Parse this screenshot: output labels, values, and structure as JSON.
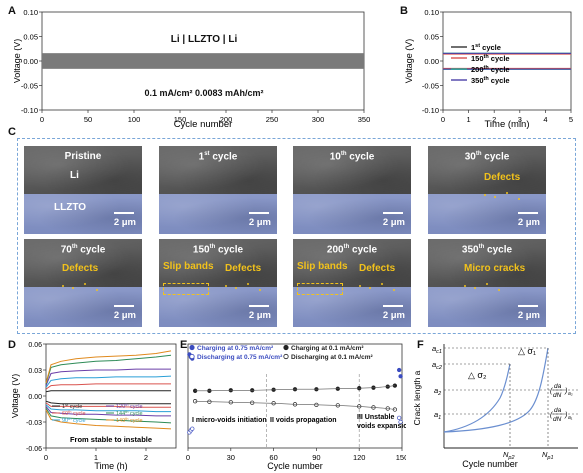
{
  "panels": {
    "A": {
      "letter": "A",
      "cell_label": "Li | LLZTO | Li",
      "condition": "0.1 mA/cm² 0.0083 mAh/cm²",
      "xlabel": "Cycle number",
      "ylabel": "Voltage (V)",
      "x_ticks": [
        "0",
        "50",
        "100",
        "150",
        "200",
        "250",
        "300",
        "350"
      ],
      "y_ticks": [
        "0.10",
        "0.05",
        "0.00",
        "-0.05",
        "-0.10"
      ]
    },
    "B": {
      "letter": "B",
      "xlabel": "Time (min)",
      "ylabel": "Voltage (V)",
      "x_ticks": [
        "0",
        "1",
        "2",
        "3",
        "4",
        "5"
      ],
      "y_ticks": [
        "0.10",
        "0.05",
        "0.00",
        "-0.05",
        "-0.10"
      ],
      "legend": [
        {
          "base": "1",
          "sup": "st",
          "rest": " cycle",
          "color": "#333333"
        },
        {
          "base": "150",
          "sup": "th",
          "rest": " cycle",
          "color": "#d9534f"
        },
        {
          "base": "200",
          "sup": "th",
          "rest": " cycle",
          "color": "#2aa39a"
        },
        {
          "base": "350",
          "sup": "th",
          "rest": " cycle",
          "color": "#4b3fa8"
        }
      ]
    },
    "C": {
      "letter": "C",
      "tiles": [
        {
          "title": "Pristine",
          "sup": "",
          "rest": "",
          "li": "Li",
          "llzto": "LLZTO",
          "scale": "2 μm"
        },
        {
          "title": "1",
          "sup": "st",
          "rest": " cycle",
          "scale": "2 μm"
        },
        {
          "title": "10",
          "sup": "th",
          "rest": " cycle",
          "scale": "2 μm"
        },
        {
          "title": "30",
          "sup": "th",
          "rest": " cycle",
          "defect": "Defects",
          "scale": "2 μm"
        },
        {
          "title": "70",
          "sup": "th",
          "rest": " cycle",
          "defect": "Defects",
          "scale": "2 μm"
        },
        {
          "title": "150",
          "sup": "th",
          "rest": " cycle",
          "slip": "Slip bands",
          "defect": "Defects",
          "scale": "2 μm"
        },
        {
          "title": "200",
          "sup": "th",
          "rest": " cycle",
          "slip": "Slip bands",
          "defect": "Defects",
          "scale": "2 μm"
        },
        {
          "title": "350",
          "sup": "th",
          "rest": " cycle",
          "defect": "Micro cracks",
          "scale": "2 μm"
        }
      ]
    },
    "D": {
      "letter": "D",
      "xlabel": "Time (h)",
      "ylabel": "Voltage (V)",
      "x_ticks": [
        "0",
        "1",
        "2"
      ],
      "y_ticks": [
        "0.06",
        "0.03",
        "0.00",
        "-0.03",
        "-0.06"
      ],
      "caption": "From stable to instable",
      "legend": [
        {
          "base": "1",
          "sup": "st",
          "rest": " cycle",
          "color": "#222222"
        },
        {
          "base": "60",
          "sup": "th",
          "rest": " cycle",
          "color": "#d9534f"
        },
        {
          "base": "90",
          "sup": "th",
          "rest": " cycle",
          "color": "#2a9fd6"
        },
        {
          "base": "120",
          "sup": "th",
          "rest": " cycle",
          "color": "#6a3fa8"
        },
        {
          "base": "144",
          "sup": "th",
          "rest": " cycle",
          "color": "#2e8b57"
        },
        {
          "base": "149",
          "sup": "th",
          "rest": " cycle",
          "color": "#e08a1e"
        }
      ]
    },
    "E": {
      "letter": "E",
      "xlabel": "Cycle number",
      "ylabel": "Voltage (V)",
      "x_ticks": [
        "0",
        "30",
        "60",
        "90",
        "120",
        "150"
      ],
      "y_ticks": [
        "0.10",
        "0.05",
        "0.00",
        "-0.05",
        "-0.10"
      ],
      "legend": [
        {
          "text": "Charging at 0.75 mA/cm²",
          "color": "#3b4cc0",
          "filled": true
        },
        {
          "text": "Discharging at 0.75 mA/cm²",
          "color": "#3b4cc0",
          "filled": false
        },
        {
          "text": "Charging at 0.1 mA/cm²",
          "color": "#222222",
          "filled": true
        },
        {
          "text": "Discharging at 0.1 mA/cm²",
          "color": "#222222",
          "filled": false
        }
      ],
      "regions": [
        "I micro-voids initiation",
        "II voids propagation",
        "III Unstable voids expansion"
      ]
    },
    "F": {
      "letter": "F",
      "xlabel": "Cycle number",
      "ylabel": "Crack length a",
      "y_marks": [
        "a_c1",
        "a_c2",
        "a_2",
        "a_1"
      ],
      "x_marks": [
        "N_p2",
        "N_p1"
      ],
      "sigma1": "△ σ₁",
      "sigma2": "△ σ₂",
      "rate_top": "(da/dN)a₂",
      "rate_bottom": "(da/dN)a₁"
    }
  },
  "chart_data": [
    {
      "type": "line",
      "panel": "B",
      "xlabel": "Time (min)",
      "ylabel": "Voltage (V)",
      "xlim": [
        0,
        5
      ],
      "ylim": [
        -0.1,
        0.1
      ],
      "x": [
        0,
        5
      ],
      "series": [
        {
          "name": "1st cycle",
          "values_charge": [
            0.015,
            0.015
          ],
          "values_discharge": [
            -0.016,
            -0.016
          ]
        },
        {
          "name": "150th cycle",
          "values_charge": [
            0.014,
            0.014
          ],
          "values_discharge": [
            -0.015,
            -0.015
          ]
        },
        {
          "name": "200th cycle",
          "values_charge": [
            0.016,
            0.016
          ],
          "values_discharge": [
            -0.017,
            -0.017
          ]
        },
        {
          "name": "350th cycle",
          "values_charge": [
            0.0155,
            0.0155
          ],
          "values_discharge": [
            -0.0165,
            -0.0165
          ]
        }
      ]
    },
    {
      "type": "area",
      "panel": "A",
      "xlabel": "Cycle number",
      "ylabel": "Voltage (V)",
      "xlim": [
        0,
        350
      ],
      "ylim": [
        -0.1,
        0.1
      ],
      "x": [
        0,
        350
      ],
      "series": [
        {
          "name": "",
          "upper": [
            0.016,
            0.016
          ],
          "lower": [
            -0.016,
            -0.016
          ]
        }
      ]
    },
    {
      "type": "line",
      "panel": "D",
      "xlabel": "Time (h)",
      "ylabel": "Voltage (V)",
      "xlim": [
        0,
        2.6
      ],
      "ylim": [
        -0.06,
        0.06
      ],
      "x": [
        0,
        0.1,
        0.3,
        0.6,
        1.0,
        1.4,
        1.8,
        2.2,
        2.5
      ],
      "series": [
        {
          "name": "1st cycle",
          "values": [
            0.005,
            0.006,
            0.006,
            0.006,
            0.006,
            0.006,
            0.006,
            0.006,
            0.006
          ]
        },
        {
          "name": "60th cycle",
          "values": [
            0.008,
            0.012,
            0.013,
            0.013,
            0.014,
            0.014,
            0.014,
            0.014,
            0.014
          ]
        },
        {
          "name": "90th cycle",
          "values": [
            0.01,
            0.018,
            0.02,
            0.021,
            0.021,
            0.022,
            0.022,
            0.022,
            0.023
          ]
        },
        {
          "name": "120th cycle",
          "values": [
            0.012,
            0.026,
            0.028,
            0.029,
            0.03,
            0.03,
            0.031,
            0.031,
            0.031
          ]
        },
        {
          "name": "144th cycle",
          "values": [
            0.014,
            0.033,
            0.036,
            0.038,
            0.04,
            0.041,
            0.043,
            0.045,
            0.047
          ]
        },
        {
          "name": "149th cycle",
          "values": [
            0.015,
            0.036,
            0.04,
            0.043,
            0.045,
            0.046,
            0.047,
            0.049,
            0.052
          ]
        },
        {
          "name": "1st cycle discharge",
          "values": [
            -0.006,
            -0.008,
            -0.009,
            -0.009,
            -0.009,
            -0.009,
            -0.009,
            -0.009,
            -0.009
          ]
        },
        {
          "name": "60th cycle discharge",
          "values": [
            -0.008,
            -0.012,
            -0.012,
            -0.012,
            -0.012,
            -0.012,
            -0.013,
            -0.013,
            -0.013
          ]
        },
        {
          "name": "90th cycle discharge",
          "values": [
            -0.01,
            -0.015,
            -0.016,
            -0.016,
            -0.017,
            -0.017,
            -0.017,
            -0.018,
            -0.018
          ]
        },
        {
          "name": "120th cycle discharge",
          "values": [
            -0.012,
            -0.019,
            -0.02,
            -0.021,
            -0.021,
            -0.022,
            -0.022,
            -0.023,
            -0.023
          ]
        },
        {
          "name": "144th cycle discharge",
          "values": [
            -0.014,
            -0.023,
            -0.025,
            -0.026,
            -0.027,
            -0.028,
            -0.029,
            -0.03,
            -0.031
          ]
        },
        {
          "name": "149th cycle discharge",
          "values": [
            -0.016,
            -0.027,
            -0.03,
            -0.032,
            -0.034,
            -0.035,
            -0.036,
            -0.037,
            -0.038
          ]
        }
      ]
    },
    {
      "type": "scatter",
      "panel": "E",
      "xlabel": "Cycle number",
      "ylabel": "Voltage (V)",
      "xlim": [
        0,
        150
      ],
      "ylim": [
        -0.1,
        0.1
      ],
      "series": [
        {
          "name": "Charging at 0.75 mA/cm²",
          "x": [
            1,
            2,
            3,
            148,
            149
          ],
          "values": [
            0.08,
            0.075,
            0.072,
            0.05,
            0.038
          ]
        },
        {
          "name": "Discharging at 0.75 mA/cm²",
          "x": [
            1,
            2,
            3,
            148,
            149
          ],
          "values": [
            -0.07,
            -0.066,
            -0.063,
            -0.042,
            -0.05
          ]
        },
        {
          "name": "Charging at 0.1 mA/cm²",
          "x": [
            5,
            15,
            30,
            45,
            60,
            75,
            90,
            105,
            120,
            130,
            140,
            145
          ],
          "values": [
            0.01,
            0.01,
            0.011,
            0.011,
            0.012,
            0.013,
            0.013,
            0.014,
            0.015,
            0.016,
            0.018,
            0.02
          ]
        },
        {
          "name": "Discharging at 0.1 mA/cm²",
          "x": [
            5,
            15,
            30,
            45,
            60,
            75,
            90,
            105,
            120,
            130,
            140,
            145
          ],
          "values": [
            -0.01,
            -0.011,
            -0.012,
            -0.013,
            -0.014,
            -0.016,
            -0.017,
            -0.018,
            -0.02,
            -0.022,
            -0.024,
            -0.026
          ]
        }
      ]
    }
  ]
}
